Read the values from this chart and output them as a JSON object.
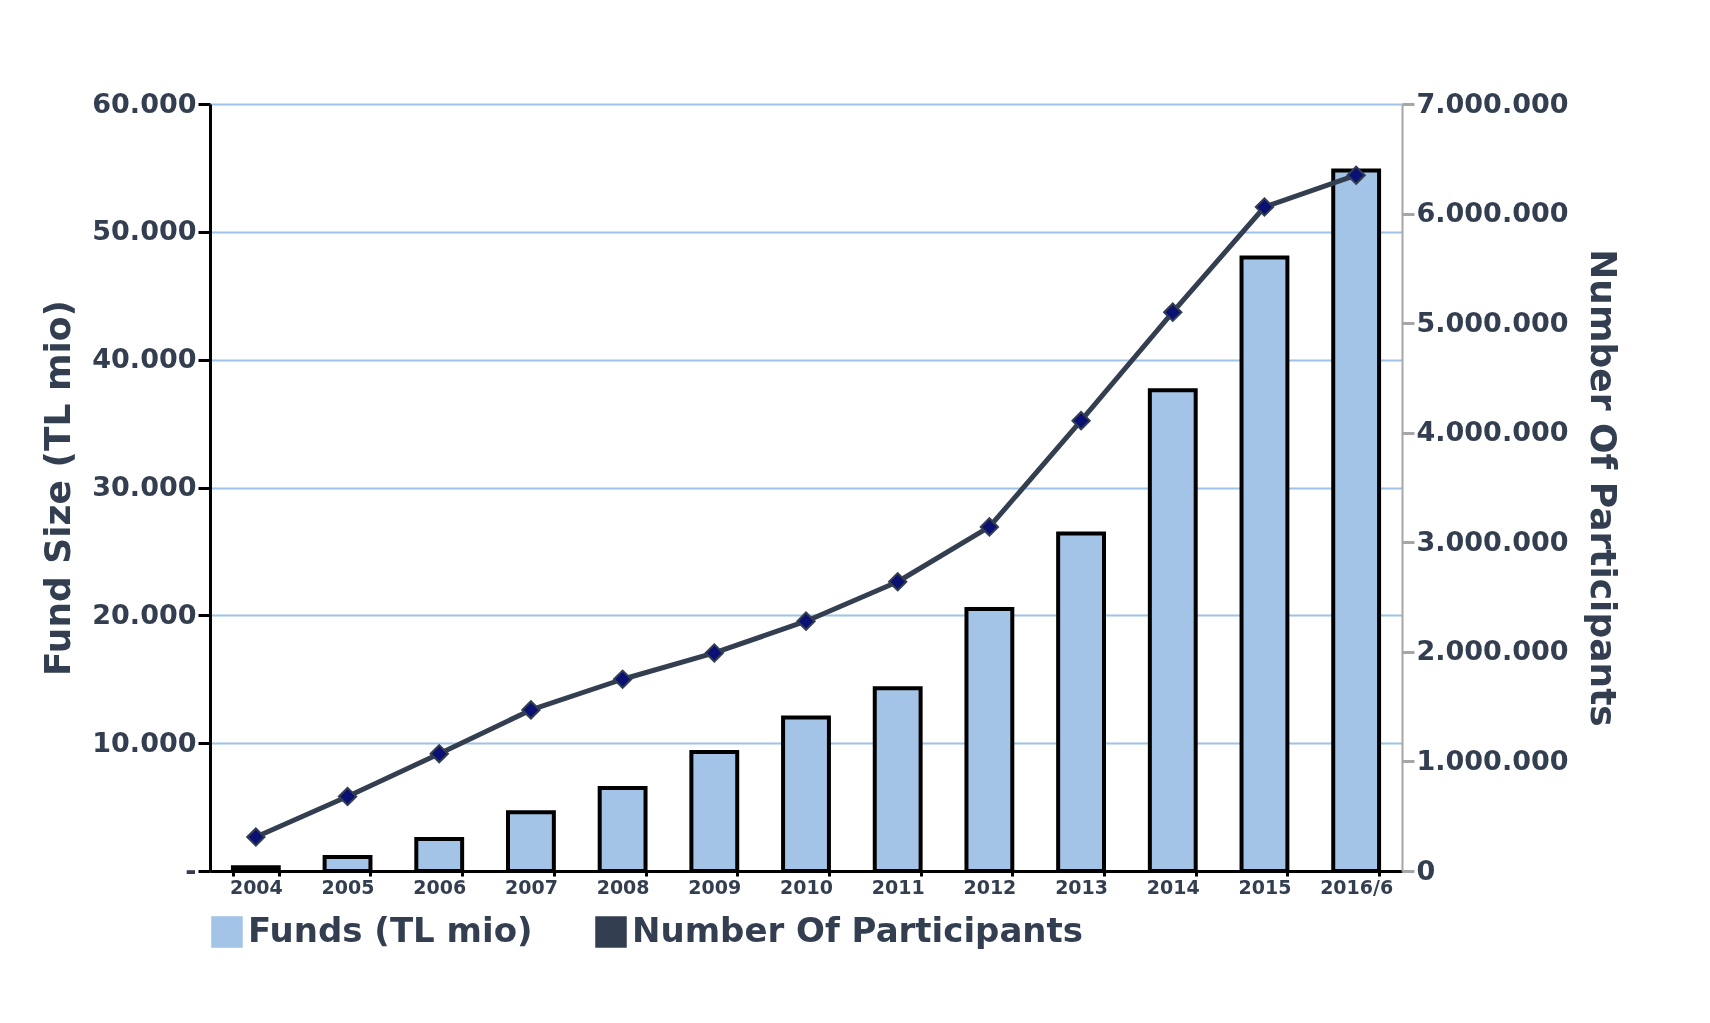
{
  "chart_data": {
    "type": "bar",
    "categories": [
      "2004",
      "2005",
      "2006",
      "2007",
      "2008",
      "2009",
      "2010",
      "2011",
      "2012",
      "2013",
      "2014",
      "2015",
      "2016/6"
    ],
    "ylabel": "Fund Size (TL mio)",
    "y2label": "Number Of Participants",
    "series": [
      {
        "name": "Funds (TL mio)",
        "color": "#a3c4e6",
        "values": [
          300,
          1100,
          2500,
          4600,
          6500,
          9300,
          12000,
          14300,
          20500,
          26400,
          37600,
          48000,
          54800
        ]
      },
      {
        "name": "Number Of Participants",
        "type": "line",
        "axis": "y2",
        "color": "#333f50",
        "marker": "diamond",
        "values": [
          310000,
          680000,
          1070000,
          1470000,
          1750000,
          1990000,
          2280000,
          2640000,
          3140000,
          4110000,
          5100000,
          6060000,
          6350000
        ]
      }
    ],
    "ylim": [
      0,
      60000
    ],
    "yticks": [
      {
        "value": 0,
        "label": "-"
      },
      {
        "value": 10000,
        "label": "10.000"
      },
      {
        "value": 20000,
        "label": "20.000"
      },
      {
        "value": 30000,
        "label": "30.000"
      },
      {
        "value": 40000,
        "label": "40.000"
      },
      {
        "value": 50000,
        "label": "50.000"
      },
      {
        "value": 60000,
        "label": "60.000"
      }
    ],
    "y2lim": [
      0,
      7000000
    ],
    "y2ticks": [
      0,
      {
        "value": 1000000,
        "label": "1.000.000"
      },
      {
        "value": 2000000,
        "label": "2.000.000"
      },
      {
        "value": 3000000,
        "label": "3.000.000"
      },
      {
        "value": 4000000,
        "label": "4.000.000"
      },
      {
        "value": 5000000,
        "label": "5.000.000"
      },
      {
        "value": 6000000,
        "label": "6.000.000"
      },
      {
        "value": 7000000,
        "label": "7.000.000"
      }
    ],
    "grid": "y",
    "legend": "bottom"
  }
}
